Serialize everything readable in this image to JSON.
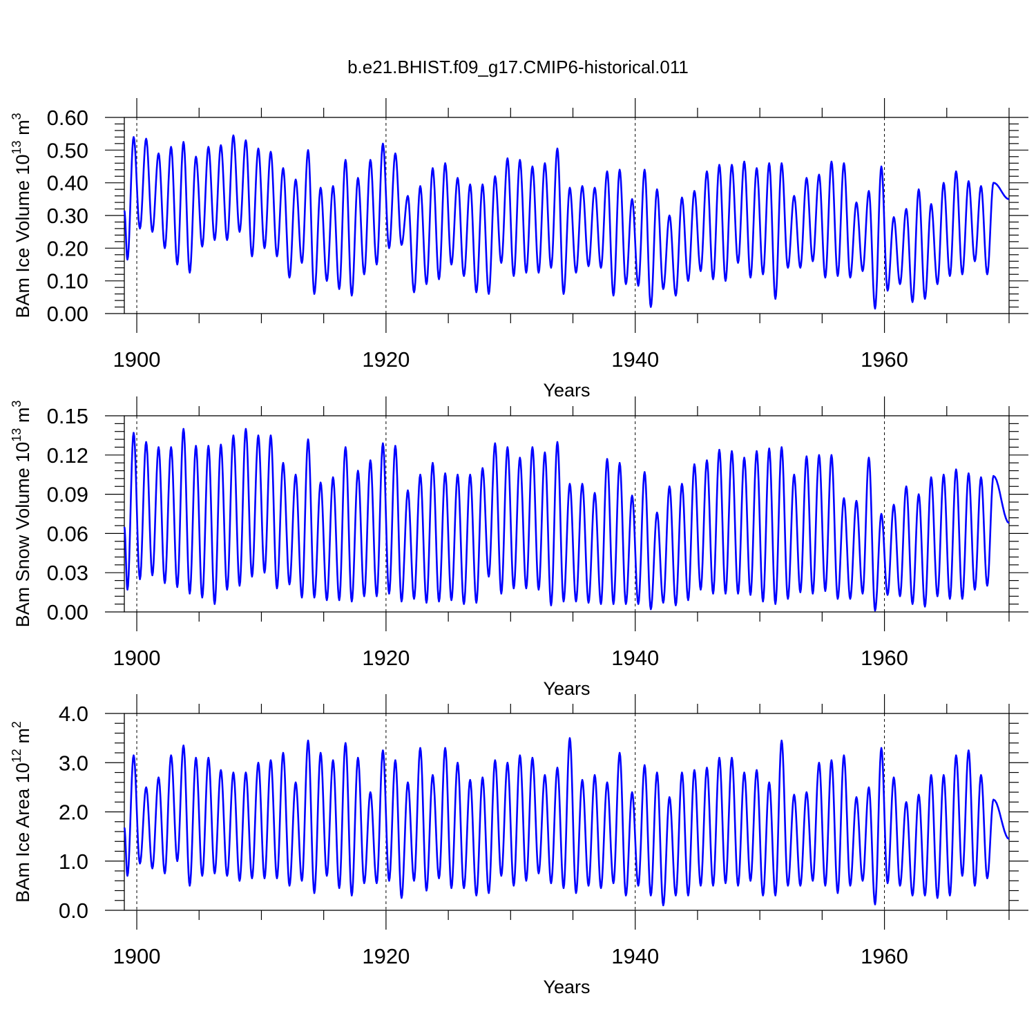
{
  "title": "b.e21.BHIST.f09_g17.CMIP6-historical.011",
  "colors": {
    "series": "#0000ff",
    "axes": "#000000",
    "background": "#ffffff"
  },
  "chart_data": [
    {
      "type": "line",
      "name": "ice-volume",
      "title": "b.e21.BHIST.f09_g17.CMIP6-historical.011",
      "xlabel": "Years",
      "ylabel": "BAm Ice Volume 10",
      "ylabel_exp": "13",
      "ylabel_unit": " m",
      "ylabel_unit_exp": "3",
      "xlim": [
        1899,
        1970
      ],
      "ylim": [
        0,
        0.6
      ],
      "xticks": [
        1900,
        1920,
        1940,
        1960
      ],
      "xtick_labels": [
        "1900",
        "1920",
        "1940",
        "1960"
      ],
      "yticks": [
        0,
        0.1,
        0.2,
        0.3,
        0.4,
        0.5,
        0.6
      ],
      "ytick_labels": [
        "0.00",
        "0.10",
        "0.20",
        "0.30",
        "0.40",
        "0.50",
        "0.60"
      ],
      "grid": "dashed vertical at major x ticks",
      "series": [
        {
          "name": "BAm Ice Volume",
          "x_start": 1899.04,
          "x_step": 1.0,
          "peak_offset": 0.75,
          "trough_offset": 0.25,
          "peaks": [
            0.54,
            0.535,
            0.49,
            0.51,
            0.525,
            0.48,
            0.51,
            0.515,
            0.545,
            0.53,
            0.505,
            0.495,
            0.445,
            0.41,
            0.5,
            0.385,
            0.39,
            0.47,
            0.415,
            0.47,
            0.52,
            0.49,
            0.36,
            0.39,
            0.445,
            0.46,
            0.415,
            0.395,
            0.395,
            0.42,
            0.475,
            0.47,
            0.45,
            0.46,
            0.505,
            0.385,
            0.39,
            0.385,
            0.435,
            0.44,
            0.35,
            0.44,
            0.38,
            0.3,
            0.355,
            0.375,
            0.435,
            0.455,
            0.455,
            0.465,
            0.445,
            0.46,
            0.46,
            0.36,
            0.415,
            0.425,
            0.465,
            0.46,
            0.34,
            0.375,
            0.45,
            0.295,
            0.32,
            0.38,
            0.335,
            0.4,
            0.435,
            0.405,
            0.39,
            0.4
          ],
          "troughs": [
            0.165,
            0.26,
            0.25,
            0.2,
            0.15,
            0.125,
            0.205,
            0.225,
            0.225,
            0.25,
            0.175,
            0.2,
            0.175,
            0.11,
            0.155,
            0.06,
            0.1,
            0.075,
            0.055,
            0.12,
            0.15,
            0.2,
            0.21,
            0.065,
            0.09,
            0.105,
            0.15,
            0.115,
            0.065,
            0.06,
            0.155,
            0.115,
            0.125,
            0.125,
            0.14,
            0.06,
            0.125,
            0.145,
            0.14,
            0.055,
            0.09,
            0.085,
            0.02,
            0.075,
            0.055,
            0.1,
            0.13,
            0.105,
            0.1,
            0.155,
            0.11,
            0.12,
            0.045,
            0.14,
            0.14,
            0.16,
            0.11,
            0.115,
            0.11,
            0.13,
            0.015,
            0.07,
            0.09,
            0.035,
            0.045,
            0.09,
            0.115,
            0.12,
            0.16,
            0.12
          ],
          "last_value": 0.35
        }
      ]
    },
    {
      "type": "line",
      "name": "snow-volume",
      "xlabel": "Years",
      "ylabel": "BAm Snow Volume 10",
      "ylabel_exp": "13",
      "ylabel_unit": " m",
      "ylabel_unit_exp": "3",
      "xlim": [
        1899,
        1970
      ],
      "ylim": [
        0,
        0.15
      ],
      "xticks": [
        1900,
        1920,
        1940,
        1960
      ],
      "xtick_labels": [
        "1900",
        "1920",
        "1940",
        "1960"
      ],
      "yticks": [
        0,
        0.03,
        0.06,
        0.09,
        0.12,
        0.15
      ],
      "ytick_labels": [
        "0.00",
        "0.03",
        "0.06",
        "0.09",
        "0.12",
        "0.15"
      ],
      "grid": "dashed vertical at major x ticks",
      "series": [
        {
          "name": "BAm Snow Volume",
          "x_start": 1899.04,
          "x_step": 1.0,
          "peak_offset": 0.75,
          "trough_offset": 0.25,
          "peaks": [
            0.137,
            0.13,
            0.126,
            0.126,
            0.14,
            0.127,
            0.127,
            0.128,
            0.135,
            0.14,
            0.135,
            0.135,
            0.114,
            0.105,
            0.132,
            0.099,
            0.103,
            0.126,
            0.108,
            0.116,
            0.129,
            0.127,
            0.093,
            0.105,
            0.114,
            0.106,
            0.105,
            0.105,
            0.11,
            0.129,
            0.126,
            0.118,
            0.126,
            0.122,
            0.13,
            0.098,
            0.098,
            0.091,
            0.117,
            0.114,
            0.089,
            0.107,
            0.076,
            0.096,
            0.098,
            0.113,
            0.116,
            0.124,
            0.123,
            0.118,
            0.123,
            0.125,
            0.126,
            0.105,
            0.119,
            0.12,
            0.12,
            0.087,
            0.085,
            0.118,
            0.075,
            0.082,
            0.096,
            0.09,
            0.103,
            0.105,
            0.109,
            0.106,
            0.103,
            0.104
          ],
          "troughs": [
            0.017,
            0.025,
            0.028,
            0.022,
            0.019,
            0.014,
            0.011,
            0.006,
            0.017,
            0.02,
            0.027,
            0.03,
            0.018,
            0.021,
            0.011,
            0.011,
            0.009,
            0.009,
            0.008,
            0.012,
            0.012,
            0.014,
            0.008,
            0.01,
            0.007,
            0.008,
            0.009,
            0.006,
            0.007,
            0.027,
            0.014,
            0.018,
            0.018,
            0.017,
            0.005,
            0.008,
            0.008,
            0.007,
            0.006,
            0.006,
            0.006,
            0.006,
            0.002,
            0.007,
            0.005,
            0.009,
            0.017,
            0.014,
            0.014,
            0.014,
            0.013,
            0.008,
            0.006,
            0.01,
            0.015,
            0.014,
            0.016,
            0.01,
            0.01,
            0.014,
            0.001,
            0.013,
            0.012,
            0.006,
            0.004,
            0.012,
            0.01,
            0.01,
            0.017,
            0.02
          ],
          "last_value": 0.068
        }
      ]
    },
    {
      "type": "line",
      "name": "ice-area",
      "xlabel": "Years",
      "ylabel": "BAm Ice Area 10",
      "ylabel_exp": "12",
      "ylabel_unit": " m",
      "ylabel_unit_exp": "2",
      "xlim": [
        1899,
        1970
      ],
      "ylim": [
        0,
        4
      ],
      "xticks": [
        1900,
        1920,
        1940,
        1960
      ],
      "xtick_labels": [
        "1900",
        "1920",
        "1940",
        "1960"
      ],
      "yticks": [
        0,
        1,
        2,
        3,
        4
      ],
      "ytick_labels": [
        "0.0",
        "1.0",
        "2.0",
        "3.0",
        "4.0"
      ],
      "grid": "dashed vertical at major x ticks",
      "series": [
        {
          "name": "BAm Ice Area",
          "x_start": 1899.04,
          "x_step": 1.0,
          "peak_offset": 0.75,
          "trough_offset": 0.25,
          "peaks": [
            3.15,
            2.5,
            2.7,
            3.15,
            3.35,
            3.1,
            3.1,
            2.85,
            2.8,
            2.8,
            3.0,
            3.05,
            3.2,
            2.6,
            3.45,
            3.2,
            3.05,
            3.4,
            3.1,
            2.4,
            3.25,
            3.05,
            2.6,
            3.3,
            2.75,
            3.3,
            3.0,
            2.65,
            2.7,
            3.05,
            3.0,
            3.15,
            3.1,
            2.75,
            2.9,
            3.5,
            2.65,
            2.75,
            2.6,
            3.2,
            2.4,
            2.95,
            2.8,
            2.3,
            2.8,
            2.85,
            2.9,
            3.1,
            3.1,
            2.8,
            2.85,
            2.6,
            3.45,
            2.35,
            2.4,
            3.0,
            3.05,
            3.15,
            2.3,
            2.5,
            3.3,
            2.7,
            2.2,
            2.35,
            2.75,
            2.75,
            3.15,
            3.25,
            2.75,
            2.25
          ],
          "troughs": [
            0.7,
            0.95,
            0.85,
            0.75,
            1.0,
            0.5,
            0.7,
            0.75,
            0.7,
            0.6,
            0.65,
            0.65,
            0.65,
            0.5,
            0.6,
            0.35,
            0.7,
            0.45,
            0.3,
            0.55,
            0.55,
            0.6,
            0.25,
            0.6,
            0.4,
            0.65,
            0.45,
            0.45,
            0.3,
            0.35,
            0.7,
            0.5,
            0.6,
            0.75,
            0.55,
            0.45,
            0.35,
            0.5,
            0.45,
            0.55,
            0.3,
            0.5,
            0.3,
            0.1,
            0.3,
            0.3,
            0.5,
            0.5,
            0.55,
            0.5,
            0.6,
            0.3,
            0.3,
            0.5,
            0.5,
            0.6,
            0.5,
            0.35,
            0.5,
            0.6,
            0.12,
            0.55,
            0.5,
            0.3,
            0.3,
            0.25,
            0.3,
            0.7,
            0.5,
            0.65
          ],
          "last_value": 1.45
        }
      ]
    }
  ]
}
